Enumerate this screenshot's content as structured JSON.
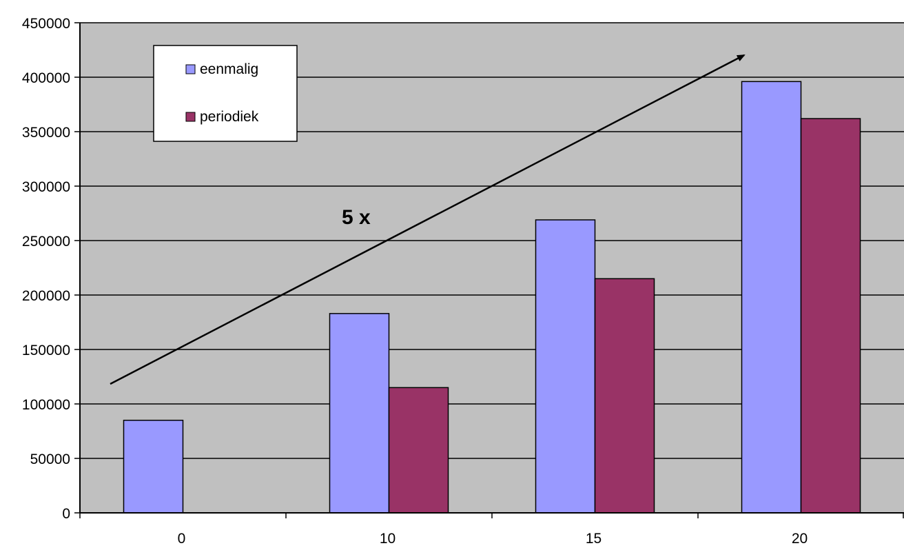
{
  "chart_data": {
    "type": "bar",
    "title": "",
    "xlabel": "",
    "ylabel": "",
    "categories": [
      "0",
      "10",
      "15",
      "20"
    ],
    "series": [
      {
        "name": "eenmalig",
        "values": [
          85000,
          183000,
          269000,
          396000
        ]
      },
      {
        "name": "periodiek",
        "values": [
          0,
          115000,
          215000,
          362000
        ]
      }
    ],
    "ylim": [
      0,
      450000
    ],
    "yticks": [
      "0",
      "50000",
      "100000",
      "150000",
      "200000",
      "250000",
      "300000",
      "350000",
      "400000",
      "450000"
    ],
    "grid": true,
    "legend_position": "top-left",
    "annotation": "5 x",
    "colors": {
      "plot_background": "#c0c0c0",
      "eenmalig": "#9999ff",
      "periodiek": "#993366",
      "gridline": "#000000"
    }
  }
}
